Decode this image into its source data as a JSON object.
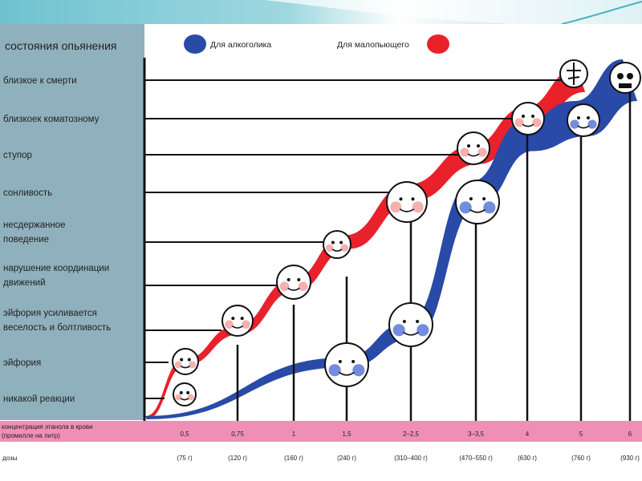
{
  "chart_data": {
    "type": "area",
    "header": "состояния опьянения",
    "legend": [
      {
        "label": "Для алкоголика",
        "color": "#2a4aa8",
        "position": "top-left"
      },
      {
        "label": "Для малопьющего",
        "color": "#e8212b",
        "position": "top-right"
      }
    ],
    "states": [
      {
        "line1": "близкое к смерти",
        "line2": ""
      },
      {
        "line1": "близкоек коматозному",
        "line2": ""
      },
      {
        "line1": "ступор",
        "line2": ""
      },
      {
        "line1": "сонливость",
        "line2": ""
      },
      {
        "line1": "несдержанное",
        "line2": "поведение"
      },
      {
        "line1": "нарушение координации",
        "line2": "движений"
      },
      {
        "line1": "эйфория усиливается",
        "line2": "веселость и болтливость"
      },
      {
        "line1": "эйфория",
        "line2": ""
      },
      {
        "line1": "никакой реакции",
        "line2": ""
      }
    ],
    "x_row_label": [
      "концентрация этанола в крови",
      "(промилле на литр)"
    ],
    "dose_row_label": "дозы",
    "x_ticks": [
      "0,5",
      "0,75",
      "1",
      "1,5",
      "2–2,5",
      "3–3,5",
      "4",
      "5",
      "6"
    ],
    "doses": [
      "(75 г)",
      "(120 г)",
      "(160 г)",
      "(240 г)",
      "(310–400 г)",
      "(470–550 г)",
      "(630 г)",
      "(760 г)",
      "(930 г)"
    ],
    "series": [
      {
        "name": "Для малопьющего",
        "color": "#e8212b",
        "points": [
          [
            0,
            8
          ],
          [
            0,
            7
          ],
          [
            1,
            6
          ],
          [
            2,
            5
          ],
          [
            3,
            4
          ],
          [
            4,
            3
          ],
          [
            5,
            2
          ],
          [
            6,
            1
          ],
          [
            7,
            0
          ]
        ]
      },
      {
        "name": "Для алкоголика",
        "color": "#2a4aa8",
        "points": [
          [
            0,
            8
          ],
          [
            3,
            7
          ],
          [
            4,
            6
          ],
          [
            5,
            3
          ],
          [
            6,
            1.5
          ],
          [
            7,
            1
          ],
          [
            8,
            0
          ]
        ]
      }
    ]
  }
}
